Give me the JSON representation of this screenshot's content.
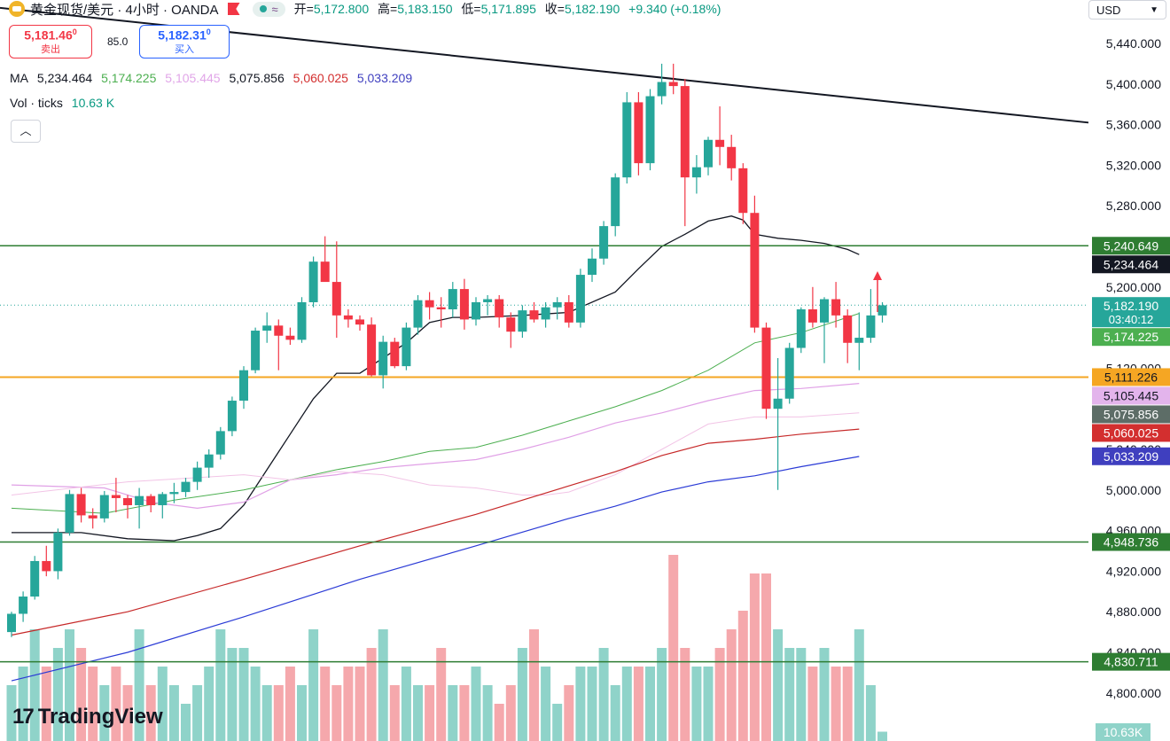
{
  "header": {
    "symbol": "黄金现货/美元 · 4小时 · OANDA",
    "open_label": "开=",
    "open": "5,172.800",
    "high_label": "高=",
    "high": "5,183.150",
    "low_label": "低=",
    "low": "5,171.895",
    "close_label": "收=",
    "close": "5,182.190",
    "change": "+9.340 (+0.18%)"
  },
  "trade": {
    "sell_price": "5,181.46",
    "sell_sup": "0",
    "sell_label": "卖出",
    "spread": "85.0",
    "buy_price": "5,182.31",
    "buy_sup": "0",
    "buy_label": "买入"
  },
  "ma": {
    "label": "MA",
    "values": [
      "5,234.464",
      "5,174.225",
      "5,105.445",
      "5,075.856",
      "5,060.025",
      "5,033.209"
    ],
    "colors": [
      "#131722",
      "#4caf50",
      "#e1a6e8",
      "#131722",
      "#d32f2f",
      "#3f3fbf"
    ]
  },
  "volume": {
    "label": "Vol · ticks",
    "value": "10.63 K",
    "axis_label": "10.63K"
  },
  "currency": {
    "label": "USD",
    "chevron": "chevron-down-icon"
  },
  "branding": {
    "mark": "17",
    "word": "TradingView"
  },
  "colors": {
    "up": "#26a69a",
    "down": "#f23645",
    "vol_up": "#8fd3c9",
    "vol_down": "#f5a8ac",
    "hline_green": "#2e7d32",
    "hline_orange": "#f5a623",
    "ma1": "#131722",
    "ma2": "#4caf50",
    "ma3": "#e0a0e6",
    "ma4": "#f2c4e6",
    "ma5": "#c62828",
    "ma6": "#2b3bd6"
  },
  "chart_data": {
    "type": "candlestick",
    "ylim": [
      4775,
      5455
    ],
    "y_ticks": [
      5440,
      5400,
      5360,
      5320,
      5280,
      5200,
      5120,
      5040,
      5000,
      4960,
      4920,
      4880,
      4840,
      4800
    ],
    "horizontal_lines": [
      {
        "value": 5240.649,
        "label": "5,240.649",
        "color": "#2e7d32"
      },
      {
        "value": 5111.226,
        "label": "5,111.226",
        "color": "#f5a623"
      },
      {
        "value": 4948.736,
        "label": "4,948.736",
        "color": "#2e7d32"
      },
      {
        "value": 4830.711,
        "label": "4,830.711",
        "color": "#2e7d32"
      }
    ],
    "price_labels": [
      {
        "value": 5240.649,
        "label": "5,240.649",
        "bg": "#2e7d32"
      },
      {
        "value": 5234.464,
        "label": "5,234.464",
        "bg": "#131722"
      },
      {
        "value": 5182.19,
        "label": "5,182.190",
        "sub": "03:40:12",
        "bg": "#26a69a"
      },
      {
        "value": 5174.225,
        "label": "5,174.225",
        "bg": "#4caf50"
      },
      {
        "value": 5111.226,
        "label": "5,111.226",
        "bg": "#f5a623"
      },
      {
        "value": 5105.445,
        "label": "5,105.445",
        "bg": "#e3b4ec"
      },
      {
        "value": 5075.856,
        "label": "5,075.856",
        "bg": "#5d6d67"
      },
      {
        "value": 5060.025,
        "label": "5,060.025",
        "bg": "#d32f2f"
      },
      {
        "value": 5033.209,
        "label": "5,033.209",
        "bg": "#3f3fbf"
      },
      {
        "value": 4948.736,
        "label": "4,948.736",
        "bg": "#2e7d32"
      },
      {
        "value": 4830.711,
        "label": "4,830.711",
        "bg": "#2e7d32"
      }
    ],
    "trendline": {
      "from": 5475,
      "to": 5362
    },
    "candles": [
      [
        4860,
        4880,
        4855,
        4878
      ],
      [
        4878,
        4900,
        4870,
        4895
      ],
      [
        4895,
        4935,
        4892,
        4930
      ],
      [
        4930,
        4945,
        4915,
        4920
      ],
      [
        4920,
        4962,
        4912,
        4958
      ],
      [
        4958,
        5000,
        4955,
        4996
      ],
      [
        4996,
        5002,
        4968,
        4975
      ],
      [
        4975,
        4982,
        4962,
        4972
      ],
      [
        4972,
        4999,
        4968,
        4995
      ],
      [
        4995,
        5012,
        4978,
        4992
      ],
      [
        4992,
        4995,
        4972,
        4985
      ],
      [
        4985,
        5002,
        4962,
        4994
      ],
      [
        4994,
        4996,
        4978,
        4985
      ],
      [
        4985,
        4998,
        4972,
        4996
      ],
      [
        4996,
        5007,
        4987,
        4998
      ],
      [
        4998,
        5012,
        4993,
        5008
      ],
      [
        5008,
        5028,
        5000,
        5022
      ],
      [
        5022,
        5040,
        5012,
        5035
      ],
      [
        5035,
        5062,
        5030,
        5058
      ],
      [
        5058,
        5092,
        5053,
        5088
      ],
      [
        5088,
        5122,
        5080,
        5118
      ],
      [
        5118,
        5160,
        5115,
        5157
      ],
      [
        5157,
        5175,
        5145,
        5162
      ],
      [
        5162,
        5168,
        5118,
        5152
      ],
      [
        5152,
        5160,
        5143,
        5148
      ],
      [
        5148,
        5190,
        5145,
        5185
      ],
      [
        5185,
        5230,
        5180,
        5225
      ],
      [
        5225,
        5250,
        5210,
        5205
      ],
      [
        5205,
        5245,
        5150,
        5172
      ],
      [
        5172,
        5178,
        5160,
        5168
      ],
      [
        5168,
        5172,
        5157,
        5163
      ],
      [
        5163,
        5170,
        5112,
        5113
      ],
      [
        5113,
        5152,
        5100,
        5146
      ],
      [
        5146,
        5150,
        5120,
        5122
      ],
      [
        5122,
        5165,
        5118,
        5160
      ],
      [
        5160,
        5192,
        5153,
        5187
      ],
      [
        5187,
        5195,
        5168,
        5180
      ],
      [
        5180,
        5190,
        5160,
        5178
      ],
      [
        5178,
        5205,
        5170,
        5198
      ],
      [
        5198,
        5208,
        5158,
        5168
      ],
      [
        5168,
        5190,
        5162,
        5185
      ],
      [
        5185,
        5192,
        5172,
        5188
      ],
      [
        5188,
        5192,
        5160,
        5170
      ],
      [
        5170,
        5175,
        5140,
        5156
      ],
      [
        5156,
        5182,
        5150,
        5177
      ],
      [
        5177,
        5185,
        5165,
        5168
      ],
      [
        5168,
        5185,
        5160,
        5180
      ],
      [
        5180,
        5190,
        5168,
        5185
      ],
      [
        5185,
        5192,
        5160,
        5165
      ],
      [
        5165,
        5218,
        5160,
        5212
      ],
      [
        5212,
        5238,
        5205,
        5228
      ],
      [
        5228,
        5265,
        5222,
        5260
      ],
      [
        5260,
        5312,
        5250,
        5308
      ],
      [
        5308,
        5392,
        5302,
        5382
      ],
      [
        5382,
        5392,
        5310,
        5322
      ],
      [
        5322,
        5395,
        5315,
        5388
      ],
      [
        5388,
        5420,
        5380,
        5402
      ],
      [
        5402,
        5420,
        5390,
        5398
      ],
      [
        5398,
        5405,
        5260,
        5308
      ],
      [
        5308,
        5330,
        5292,
        5318
      ],
      [
        5318,
        5348,
        5310,
        5345
      ],
      [
        5345,
        5378,
        5320,
        5338
      ],
      [
        5338,
        5350,
        5305,
        5317
      ],
      [
        5317,
        5322,
        5262,
        5273
      ],
      [
        5273,
        5290,
        5155,
        5160
      ],
      [
        5160,
        5165,
        5070,
        5080
      ],
      [
        5080,
        5130,
        5000,
        5090
      ],
      [
        5090,
        5145,
        5085,
        5140
      ],
      [
        5140,
        5180,
        5135,
        5178
      ],
      [
        5178,
        5200,
        5160,
        5165
      ],
      [
        5165,
        5190,
        5125,
        5188
      ],
      [
        5188,
        5205,
        5160,
        5172
      ],
      [
        5172,
        5178,
        5125,
        5145
      ],
      [
        5145,
        5175,
        5118,
        5150
      ],
      [
        5150,
        5198,
        5145,
        5172
      ],
      [
        5172,
        5185,
        5165,
        5182
      ]
    ],
    "volumes": [
      3,
      4,
      6,
      4,
      5,
      6,
      5,
      4,
      3,
      4,
      3,
      6,
      3,
      4,
      3,
      2,
      3,
      4,
      6,
      5,
      5,
      4,
      3,
      3,
      4,
      3,
      6,
      4,
      3,
      4,
      4,
      5,
      6,
      3,
      4,
      3,
      3,
      5,
      3,
      3,
      4,
      3,
      2,
      3,
      5,
      6,
      4,
      2,
      3,
      4,
      4,
      5,
      3,
      4,
      4,
      4,
      5,
      10,
      5,
      4,
      4,
      5,
      6,
      7,
      9,
      9,
      6,
      5,
      5,
      4,
      5,
      4,
      4,
      6,
      3,
      0.5
    ],
    "ma_series": {
      "ma1": [
        [
          0,
          4958
        ],
        [
          6,
          4958
        ],
        [
          10,
          4952
        ],
        [
          14,
          4950
        ],
        [
          16,
          4955
        ],
        [
          18,
          4962
        ],
        [
          20,
          4985
        ],
        [
          22,
          5020
        ],
        [
          24,
          5055
        ],
        [
          26,
          5090
        ],
        [
          28,
          5115
        ],
        [
          30,
          5115
        ],
        [
          32,
          5130
        ],
        [
          34,
          5145
        ],
        [
          36,
          5165
        ],
        [
          38,
          5170
        ],
        [
          40,
          5170
        ],
        [
          44,
          5172
        ],
        [
          48,
          5175
        ],
        [
          52,
          5195
        ],
        [
          54,
          5218
        ],
        [
          56,
          5240
        ],
        [
          58,
          5252
        ],
        [
          60,
          5265
        ],
        [
          62,
          5270
        ],
        [
          63,
          5266
        ],
        [
          64,
          5252
        ],
        [
          66,
          5248
        ],
        [
          68,
          5246
        ],
        [
          70,
          5243
        ],
        [
          72,
          5237
        ],
        [
          73,
          5232
        ]
      ],
      "ma2": [
        [
          0,
          4982
        ],
        [
          8,
          4977
        ],
        [
          14,
          4990
        ],
        [
          20,
          5000
        ],
        [
          24,
          5010
        ],
        [
          28,
          5020
        ],
        [
          32,
          5028
        ],
        [
          36,
          5038
        ],
        [
          40,
          5042
        ],
        [
          44,
          5054
        ],
        [
          48,
          5068
        ],
        [
          52,
          5082
        ],
        [
          56,
          5098
        ],
        [
          60,
          5118
        ],
        [
          64,
          5145
        ],
        [
          68,
          5155
        ],
        [
          73,
          5174
        ]
      ],
      "ma3": [
        [
          0,
          5005
        ],
        [
          8,
          5002
        ],
        [
          12,
          4988
        ],
        [
          16,
          4982
        ],
        [
          20,
          4988
        ],
        [
          24,
          5010
        ],
        [
          28,
          5015
        ],
        [
          32,
          5022
        ],
        [
          36,
          5026
        ],
        [
          40,
          5030
        ],
        [
          44,
          5040
        ],
        [
          48,
          5052
        ],
        [
          52,
          5066
        ],
        [
          56,
          5076
        ],
        [
          60,
          5088
        ],
        [
          64,
          5098
        ],
        [
          68,
          5100
        ],
        [
          73,
          5105
        ]
      ],
      "ma4": [
        [
          0,
          4995
        ],
        [
          10,
          5008
        ],
        [
          20,
          5015
        ],
        [
          24,
          5010
        ],
        [
          28,
          5018
        ],
        [
          32,
          5015
        ],
        [
          36,
          5005
        ],
        [
          40,
          5002
        ],
        [
          44,
          4995
        ],
        [
          46,
          4995
        ],
        [
          48,
          4998
        ],
        [
          52,
          5015
        ],
        [
          56,
          5040
        ],
        [
          60,
          5065
        ],
        [
          64,
          5072
        ],
        [
          68,
          5072
        ],
        [
          73,
          5076
        ]
      ],
      "ma5": [
        [
          0,
          4857
        ],
        [
          10,
          4880
        ],
        [
          20,
          4912
        ],
        [
          30,
          4945
        ],
        [
          40,
          4976
        ],
        [
          48,
          5004
        ],
        [
          52,
          5018
        ],
        [
          56,
          5034
        ],
        [
          60,
          5046
        ],
        [
          64,
          5050
        ],
        [
          68,
          5055
        ],
        [
          73,
          5060
        ]
      ],
      "ma6": [
        [
          0,
          4812
        ],
        [
          10,
          4840
        ],
        [
          20,
          4875
        ],
        [
          30,
          4912
        ],
        [
          40,
          4945
        ],
        [
          48,
          4972
        ],
        [
          52,
          4984
        ],
        [
          56,
          4998
        ],
        [
          60,
          5008
        ],
        [
          64,
          5014
        ],
        [
          68,
          5023
        ],
        [
          73,
          5033
        ]
      ]
    }
  }
}
